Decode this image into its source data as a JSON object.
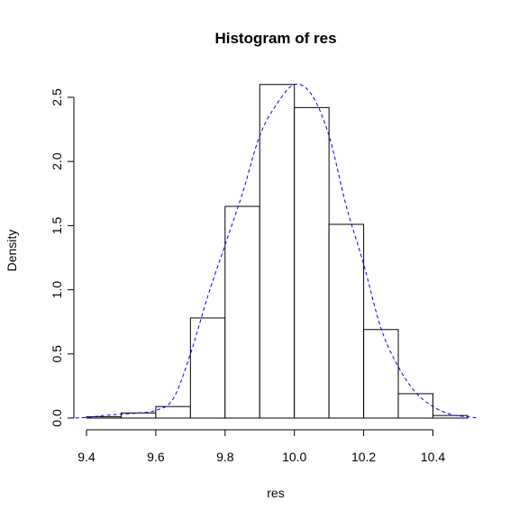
{
  "chart_data": {
    "type": "bar",
    "title": "Histogram of res",
    "xlabel": "res",
    "ylabel": "Density",
    "xlim": [
      9.4,
      10.5
    ],
    "ylim": [
      0,
      2.6
    ],
    "x_ticks": [
      9.4,
      9.6,
      9.8,
      10.0,
      10.2,
      10.4
    ],
    "x_tick_labels": [
      "9.4",
      "9.6",
      "9.8",
      "10.0",
      "10.2",
      "10.4"
    ],
    "y_ticks": [
      0,
      0.5,
      1.0,
      1.5,
      2.0,
      2.5
    ],
    "y_tick_labels": [
      "0.0",
      "0.5",
      "1.0",
      "1.5",
      "2.0",
      "2.5"
    ],
    "bins": [
      {
        "start": 9.4,
        "end": 9.5,
        "density": 0.01
      },
      {
        "start": 9.5,
        "end": 9.6,
        "density": 0.04
      },
      {
        "start": 9.6,
        "end": 9.7,
        "density": 0.09
      },
      {
        "start": 9.7,
        "end": 9.8,
        "density": 0.78
      },
      {
        "start": 9.8,
        "end": 9.9,
        "density": 1.65
      },
      {
        "start": 9.9,
        "end": 10.0,
        "density": 2.6
      },
      {
        "start": 10.0,
        "end": 10.1,
        "density": 2.42
      },
      {
        "start": 10.1,
        "end": 10.2,
        "density": 1.51
      },
      {
        "start": 10.2,
        "end": 10.3,
        "density": 0.69
      },
      {
        "start": 10.3,
        "end": 10.4,
        "density": 0.19
      },
      {
        "start": 10.4,
        "end": 10.5,
        "density": 0.02
      }
    ],
    "density_curve": {
      "color": "#0000ff",
      "style": "dashed",
      "x": [
        9.35,
        9.4,
        9.45,
        9.5,
        9.55,
        9.6,
        9.65,
        9.7,
        9.75,
        9.8,
        9.85,
        9.9,
        9.95,
        10.0,
        10.05,
        10.1,
        10.15,
        10.2,
        10.25,
        10.3,
        10.35,
        10.4,
        10.45,
        10.5,
        10.53
      ],
      "y": [
        0.0,
        0.005,
        0.02,
        0.03,
        0.04,
        0.06,
        0.15,
        0.5,
        0.95,
        1.35,
        1.75,
        2.2,
        2.45,
        2.6,
        2.52,
        2.2,
        1.65,
        1.2,
        0.7,
        0.4,
        0.2,
        0.09,
        0.03,
        0.01,
        0.0
      ]
    },
    "bar_fill": "#ffffff",
    "bar_stroke": "#000000",
    "grid": false
  }
}
